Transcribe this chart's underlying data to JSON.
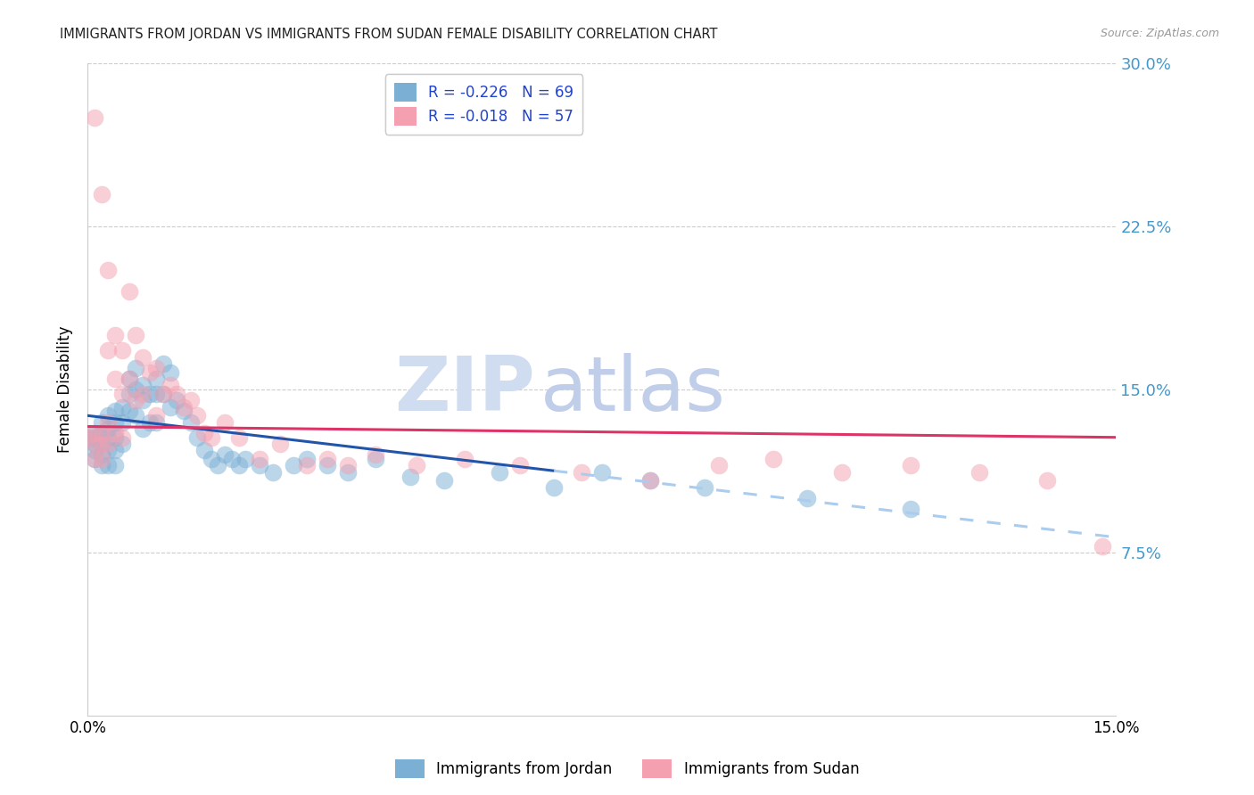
{
  "title": "IMMIGRANTS FROM JORDAN VS IMMIGRANTS FROM SUDAN FEMALE DISABILITY CORRELATION CHART",
  "source": "Source: ZipAtlas.com",
  "ylabel": "Female Disability",
  "right_yticks": [
    7.5,
    15.0,
    22.5,
    30.0
  ],
  "right_ytick_labels": [
    "7.5%",
    "15.0%",
    "22.5%",
    "30.0%"
  ],
  "xlim": [
    0.0,
    0.15
  ],
  "ylim": [
    0.0,
    0.3
  ],
  "legend_label_jordan": "Immigrants from Jordan",
  "legend_label_sudan": "Immigrants from Sudan",
  "color_jordan": "#7BAFD4",
  "color_sudan": "#F4A0B0",
  "trendline_jordan_solid_color": "#2255AA",
  "trendline_sudan_solid_color": "#DD3366",
  "trendline_jordan_dash_color": "#AACCEE",
  "watermark_zip": "ZIP",
  "watermark_atlas": "atlas",
  "jordan_x": [
    0.0,
    0.001,
    0.001,
    0.001,
    0.001,
    0.001,
    0.002,
    0.002,
    0.002,
    0.002,
    0.002,
    0.003,
    0.003,
    0.003,
    0.003,
    0.003,
    0.004,
    0.004,
    0.004,
    0.004,
    0.004,
    0.005,
    0.005,
    0.005,
    0.006,
    0.006,
    0.006,
    0.007,
    0.007,
    0.007,
    0.008,
    0.008,
    0.008,
    0.009,
    0.009,
    0.01,
    0.01,
    0.01,
    0.011,
    0.011,
    0.012,
    0.012,
    0.013,
    0.014,
    0.015,
    0.016,
    0.017,
    0.018,
    0.019,
    0.02,
    0.021,
    0.022,
    0.023,
    0.025,
    0.027,
    0.03,
    0.032,
    0.035,
    0.038,
    0.042,
    0.047,
    0.052,
    0.06,
    0.068,
    0.075,
    0.082,
    0.09,
    0.105,
    0.12
  ],
  "jordan_y": [
    0.128,
    0.13,
    0.128,
    0.125,
    0.122,
    0.118,
    0.135,
    0.13,
    0.125,
    0.12,
    0.115,
    0.138,
    0.132,
    0.128,
    0.122,
    0.115,
    0.14,
    0.135,
    0.128,
    0.122,
    0.115,
    0.142,
    0.135,
    0.125,
    0.155,
    0.148,
    0.14,
    0.16,
    0.15,
    0.138,
    0.152,
    0.145,
    0.132,
    0.148,
    0.135,
    0.155,
    0.148,
    0.135,
    0.162,
    0.148,
    0.158,
    0.142,
    0.145,
    0.14,
    0.135,
    0.128,
    0.122,
    0.118,
    0.115,
    0.12,
    0.118,
    0.115,
    0.118,
    0.115,
    0.112,
    0.115,
    0.118,
    0.115,
    0.112,
    0.118,
    0.11,
    0.108,
    0.112,
    0.105,
    0.112,
    0.108,
    0.105,
    0.1,
    0.095
  ],
  "sudan_x": [
    0.0,
    0.001,
    0.001,
    0.001,
    0.001,
    0.002,
    0.002,
    0.002,
    0.002,
    0.003,
    0.003,
    0.003,
    0.003,
    0.004,
    0.004,
    0.004,
    0.005,
    0.005,
    0.005,
    0.006,
    0.006,
    0.007,
    0.007,
    0.008,
    0.008,
    0.009,
    0.01,
    0.01,
    0.011,
    0.012,
    0.013,
    0.014,
    0.015,
    0.016,
    0.017,
    0.018,
    0.02,
    0.022,
    0.025,
    0.028,
    0.032,
    0.035,
    0.038,
    0.042,
    0.048,
    0.055,
    0.063,
    0.072,
    0.082,
    0.092,
    0.1,
    0.11,
    0.12,
    0.13,
    0.14,
    0.148,
    0.155
  ],
  "sudan_y": [
    0.128,
    0.275,
    0.13,
    0.125,
    0.118,
    0.24,
    0.13,
    0.125,
    0.118,
    0.205,
    0.168,
    0.135,
    0.125,
    0.175,
    0.155,
    0.13,
    0.168,
    0.148,
    0.128,
    0.195,
    0.155,
    0.175,
    0.145,
    0.165,
    0.148,
    0.158,
    0.16,
    0.138,
    0.148,
    0.152,
    0.148,
    0.142,
    0.145,
    0.138,
    0.13,
    0.128,
    0.135,
    0.128,
    0.118,
    0.125,
    0.115,
    0.118,
    0.115,
    0.12,
    0.115,
    0.118,
    0.115,
    0.112,
    0.108,
    0.115,
    0.118,
    0.112,
    0.115,
    0.112,
    0.108,
    0.078,
    0.128
  ],
  "jordan_trend_x0": 0.0,
  "jordan_trend_x_solid_end": 0.068,
  "jordan_trend_x_dash_end": 0.15,
  "jordan_trend_y0": 0.138,
  "jordan_trend_y_end": 0.082,
  "sudan_trend_x0": 0.0,
  "sudan_trend_x_end": 0.15,
  "sudan_trend_y0": 0.133,
  "sudan_trend_y_end": 0.128
}
